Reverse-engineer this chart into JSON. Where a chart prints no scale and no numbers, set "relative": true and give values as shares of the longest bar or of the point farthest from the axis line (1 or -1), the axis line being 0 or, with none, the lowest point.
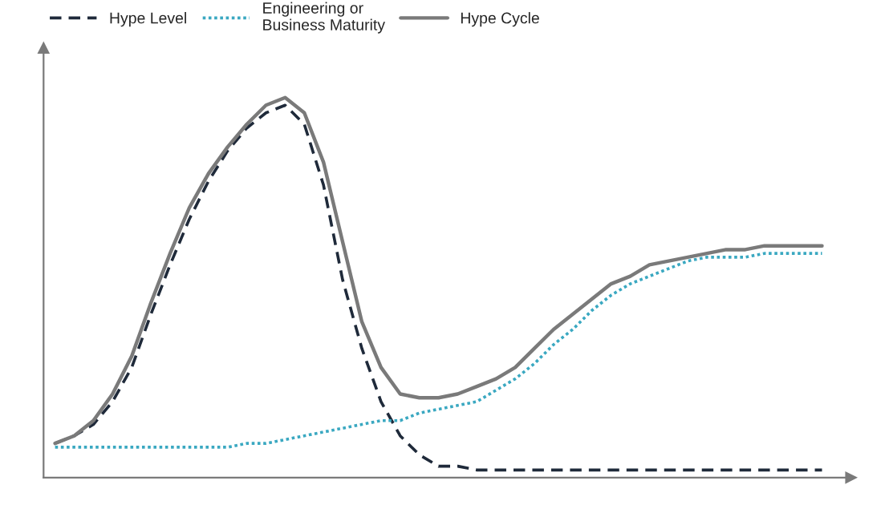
{
  "chart_data": {
    "type": "line",
    "relative": true,
    "legend": "top left",
    "categories": [
      null,
      null,
      null,
      null,
      null,
      null,
      null,
      null,
      null,
      null,
      null,
      null,
      null,
      null,
      null,
      null,
      null,
      null,
      null,
      null,
      null,
      null,
      null,
      null,
      null,
      null,
      null,
      null,
      null,
      null,
      null,
      null,
      null,
      null,
      null,
      null,
      null,
      null,
      null,
      null,
      null
    ],
    "series": [
      {
        "name": "Hype Level",
        "color": "#1f2a3a",
        "line_style": "dashed",
        "values": [
          0.09,
          0.11,
          0.14,
          0.2,
          0.29,
          0.43,
          0.56,
          0.68,
          0.78,
          0.86,
          0.92,
          0.96,
          0.98,
          0.93,
          0.77,
          0.52,
          0.34,
          0.2,
          0.11,
          0.06,
          0.03,
          0.03,
          0.02,
          0.02,
          0.02,
          0.02,
          0.02,
          0.02,
          0.02,
          0.02,
          0.02,
          0.02,
          0.02,
          0.02,
          0.02,
          0.02,
          0.02,
          0.02,
          0.02,
          0.02,
          0.02
        ]
      },
      {
        "name": "Engineering or\nBusiness Maturity",
        "color": "#3aa8c1",
        "line_style": "dotted",
        "values": [
          0.08,
          0.08,
          0.08,
          0.08,
          0.08,
          0.08,
          0.08,
          0.08,
          0.08,
          0.08,
          0.09,
          0.09,
          0.1,
          0.11,
          0.12,
          0.13,
          0.14,
          0.15,
          0.15,
          0.17,
          0.18,
          0.19,
          0.2,
          0.23,
          0.26,
          0.3,
          0.35,
          0.39,
          0.44,
          0.48,
          0.51,
          0.53,
          0.55,
          0.57,
          0.58,
          0.58,
          0.58,
          0.59,
          0.59,
          0.59,
          0.59
        ]
      },
      {
        "name": "Hype Cycle",
        "color": "#7a7a7a",
        "line_style": "solid",
        "values": [
          0.09,
          0.11,
          0.15,
          0.22,
          0.32,
          0.46,
          0.59,
          0.71,
          0.8,
          0.87,
          0.93,
          0.98,
          1.0,
          0.96,
          0.83,
          0.62,
          0.41,
          0.29,
          0.22,
          0.21,
          0.21,
          0.22,
          0.24,
          0.26,
          0.29,
          0.34,
          0.39,
          0.43,
          0.47,
          0.51,
          0.53,
          0.56,
          0.57,
          0.58,
          0.59,
          0.6,
          0.6,
          0.61,
          0.61,
          0.61,
          0.61
        ]
      }
    ]
  }
}
